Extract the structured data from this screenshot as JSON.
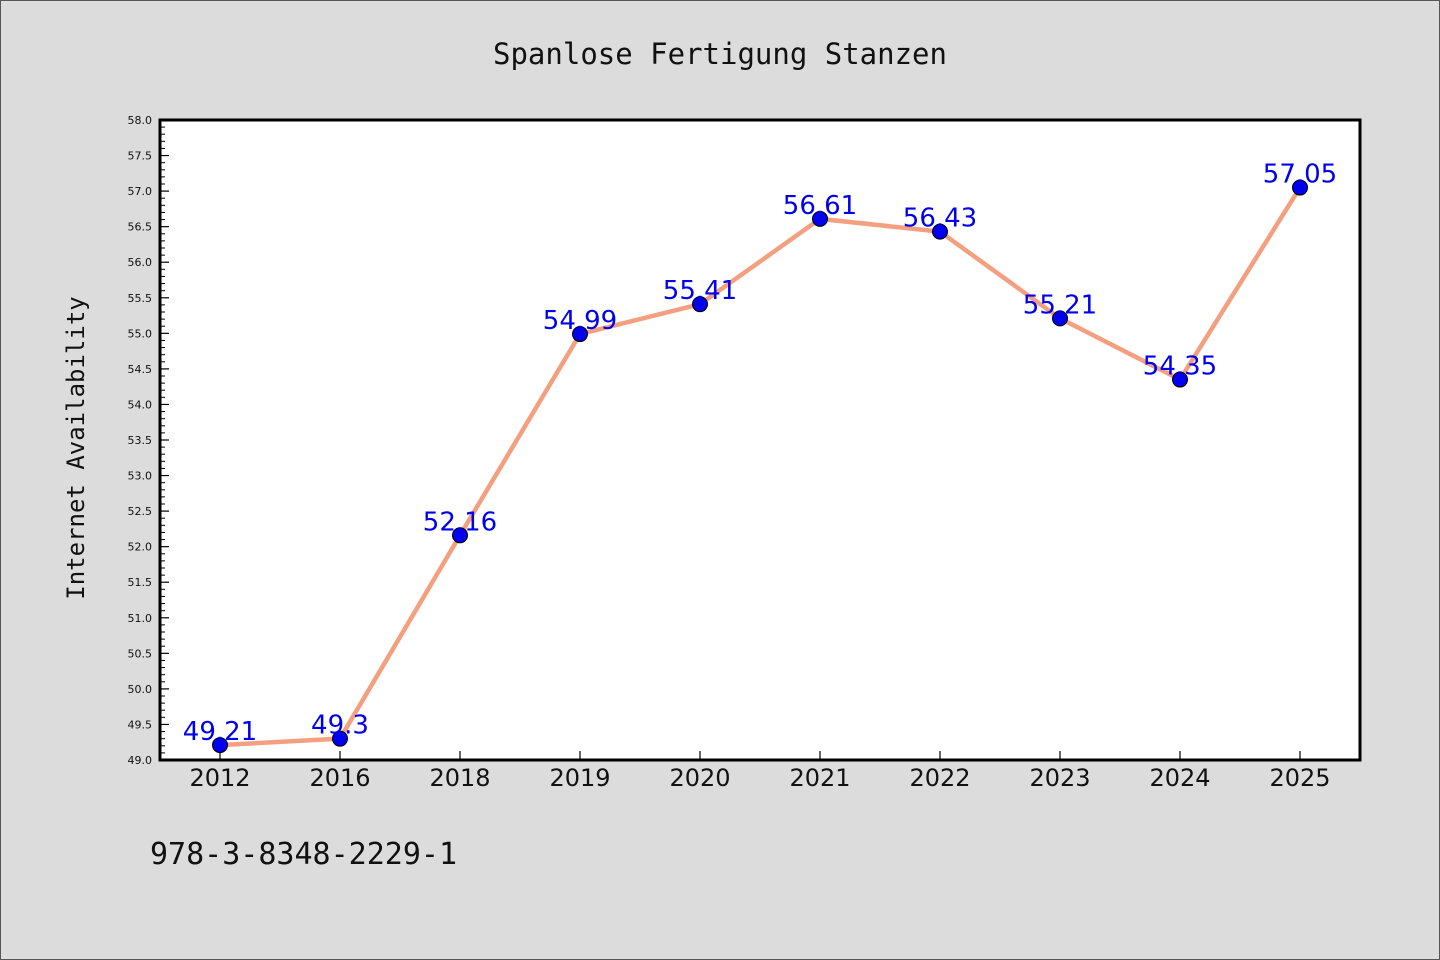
{
  "chart_data": {
    "type": "line",
    "title": "Spanlose Fertigung Stanzen",
    "xlabel": "",
    "ylabel": "Internet Availability",
    "categories": [
      "2012",
      "2016",
      "2018",
      "2019",
      "2020",
      "2021",
      "2022",
      "2023",
      "2024",
      "2025"
    ],
    "series": [
      {
        "values": [
          49.21,
          49.3,
          52.16,
          54.99,
          55.41,
          56.61,
          56.43,
          55.21,
          54.35,
          57.05
        ],
        "labels": [
          "49.21",
          "49.3",
          "52.16",
          "54.99",
          "55.41",
          "56.61",
          "56.43",
          "55.21",
          "54.35",
          "57.05"
        ],
        "line_color": "#f4a080",
        "marker_color": "#0000ee",
        "label_color": "#0000ee"
      }
    ],
    "ylim": [
      49.0,
      58.0
    ],
    "yticks": [
      "49.0",
      "49.5",
      "50.0",
      "50.5",
      "51.0",
      "51.5",
      "52.0",
      "52.5",
      "53.0",
      "53.5",
      "54.0",
      "54.5",
      "55.0",
      "55.5",
      "56.0",
      "56.5",
      "57.0",
      "57.5",
      "58.0"
    ],
    "grid": false,
    "legend": "none"
  },
  "footer_text": "978-3-8348-2229-1",
  "colors": {
    "background": "#dcdcdc",
    "plot_background": "#ffffff",
    "axis": "#000000"
  }
}
